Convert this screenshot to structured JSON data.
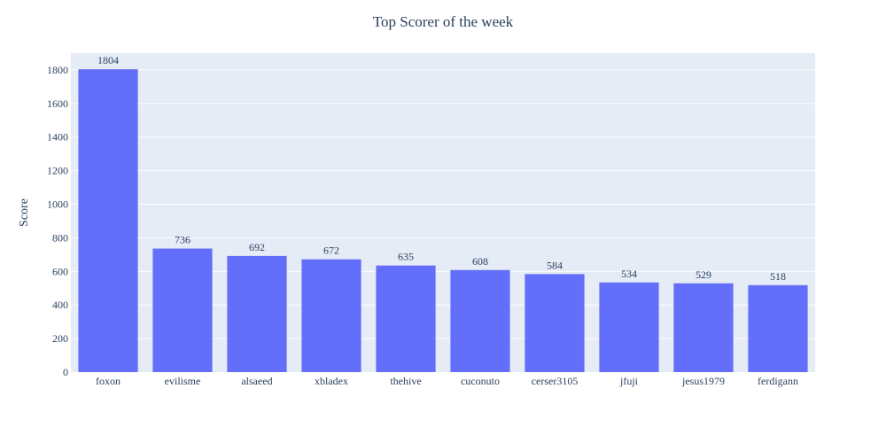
{
  "chart_data": {
    "type": "bar",
    "title": "Top Scorer of the week",
    "xlabel": "",
    "ylabel": "Score",
    "categories": [
      "foxon",
      "evilisme",
      "alsaeed",
      "xbladex",
      "thehive",
      "cuconuto",
      "cerser3105",
      "jfuji",
      "jesus1979",
      "ferdigann"
    ],
    "values": [
      1804,
      736,
      692,
      672,
      635,
      608,
      584,
      534,
      529,
      518
    ],
    "ylim": [
      0,
      1900
    ],
    "yticks": [
      0,
      200,
      400,
      600,
      800,
      1000,
      1200,
      1400,
      1600,
      1800
    ],
    "grid": true,
    "legend": "none",
    "colors": {
      "bar": "#636efa",
      "plot_bg": "#e5ecf6",
      "grid": "#ffffff",
      "text": "#2a3f5f"
    }
  }
}
